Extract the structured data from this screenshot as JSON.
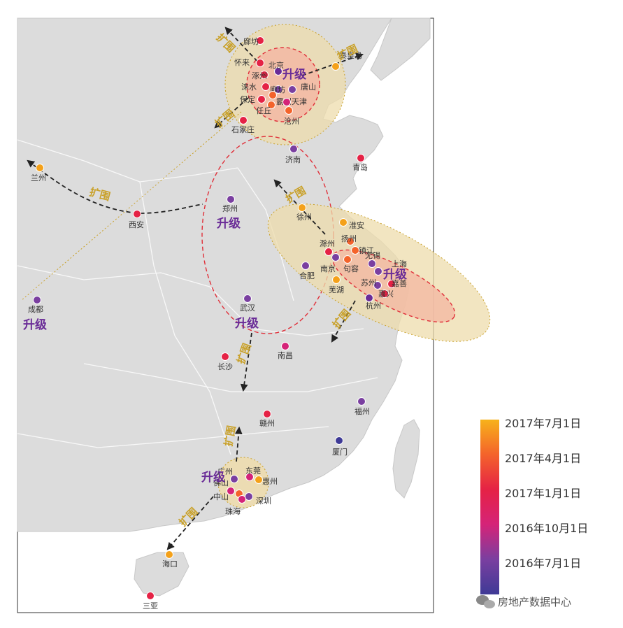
{
  "legend": {
    "labels": [
      "2017年7月1日",
      "2017年4月1日",
      "2017年1月1日",
      "2016年10月1日",
      "2016年7月1日"
    ],
    "colors": [
      "#f7b21a",
      "#f4632b",
      "#e52245",
      "#d52378",
      "#7a3fa0",
      "#3e3a96"
    ]
  },
  "action_labels": {
    "expand": "扩围",
    "upgrade": "升级"
  },
  "watermark": "房地产数据中心",
  "cities": [
    {
      "name": "廊坊",
      "color": "#e52245"
    },
    {
      "name": "怀来",
      "color": "#e52245"
    },
    {
      "name": "北京",
      "color": "#6a2c97"
    },
    {
      "name": "涿州",
      "color": "#e52245"
    },
    {
      "name": "秦皇岛",
      "color": "#f4a11a"
    },
    {
      "name": "涞水",
      "color": "#e52245"
    },
    {
      "name": "廊坊",
      "color": "#7a3fa0"
    },
    {
      "name": "唐山",
      "color": "#7a3fa0"
    },
    {
      "name": "保定",
      "color": "#e52245"
    },
    {
      "name": "霸州",
      "color": "#f4632b"
    },
    {
      "name": "天津",
      "color": "#d52378"
    },
    {
      "name": "任丘",
      "color": "#f4632b"
    },
    {
      "name": "沧州",
      "color": "#f4632b"
    },
    {
      "name": "石家庄",
      "color": "#e52245"
    },
    {
      "name": "济南",
      "color": "#7a3fa0"
    },
    {
      "name": "青岛",
      "color": "#e52245"
    },
    {
      "name": "兰州",
      "color": "#f4a11a"
    },
    {
      "name": "西安",
      "color": "#e52245"
    },
    {
      "name": "郑州",
      "color": "#7a3fa0"
    },
    {
      "name": "徐州",
      "color": "#f4a11a"
    },
    {
      "name": "淮安",
      "color": "#f4a11a"
    },
    {
      "name": "扬州",
      "color": "#f4632b"
    },
    {
      "name": "滁州",
      "color": "#e52245"
    },
    {
      "name": "镇江",
      "color": "#f4632b"
    },
    {
      "name": "南京",
      "color": "#7a3fa0"
    },
    {
      "name": "句容",
      "color": "#f4632b"
    },
    {
      "name": "无锡",
      "color": "#7a3fa0"
    },
    {
      "name": "上海",
      "color": "#7a3fa0"
    },
    {
      "name": "合肥",
      "color": "#7a3fa0"
    },
    {
      "name": "芜湖",
      "color": "#f4a11a"
    },
    {
      "name": "苏州",
      "color": "#7a3fa0"
    },
    {
      "name": "嘉善",
      "color": "#e52245"
    },
    {
      "name": "嘉兴",
      "color": "#e52245"
    },
    {
      "name": "杭州",
      "color": "#6a2c97"
    },
    {
      "name": "成都",
      "color": "#7a3fa0"
    },
    {
      "name": "武汉",
      "color": "#7a3fa0"
    },
    {
      "name": "长沙",
      "color": "#e52245"
    },
    {
      "name": "南昌",
      "color": "#d52378"
    },
    {
      "name": "福州",
      "color": "#7a3fa0"
    },
    {
      "name": "赣州",
      "color": "#e52245"
    },
    {
      "name": "厦门",
      "color": "#3e3a96"
    },
    {
      "name": "广州",
      "color": "#7a3fa0"
    },
    {
      "name": "东莞",
      "color": "#d52378"
    },
    {
      "name": "惠州",
      "color": "#f4a11a"
    },
    {
      "name": "佛山",
      "color": "#d52378"
    },
    {
      "name": "中山",
      "color": "#f4632b"
    },
    {
      "name": "深圳",
      "color": "#7a3fa0"
    },
    {
      "name": "珠海",
      "color": "#d52378"
    },
    {
      "name": "海口",
      "color": "#f4a11a"
    },
    {
      "name": "三亚",
      "color": "#e52245"
    }
  ]
}
